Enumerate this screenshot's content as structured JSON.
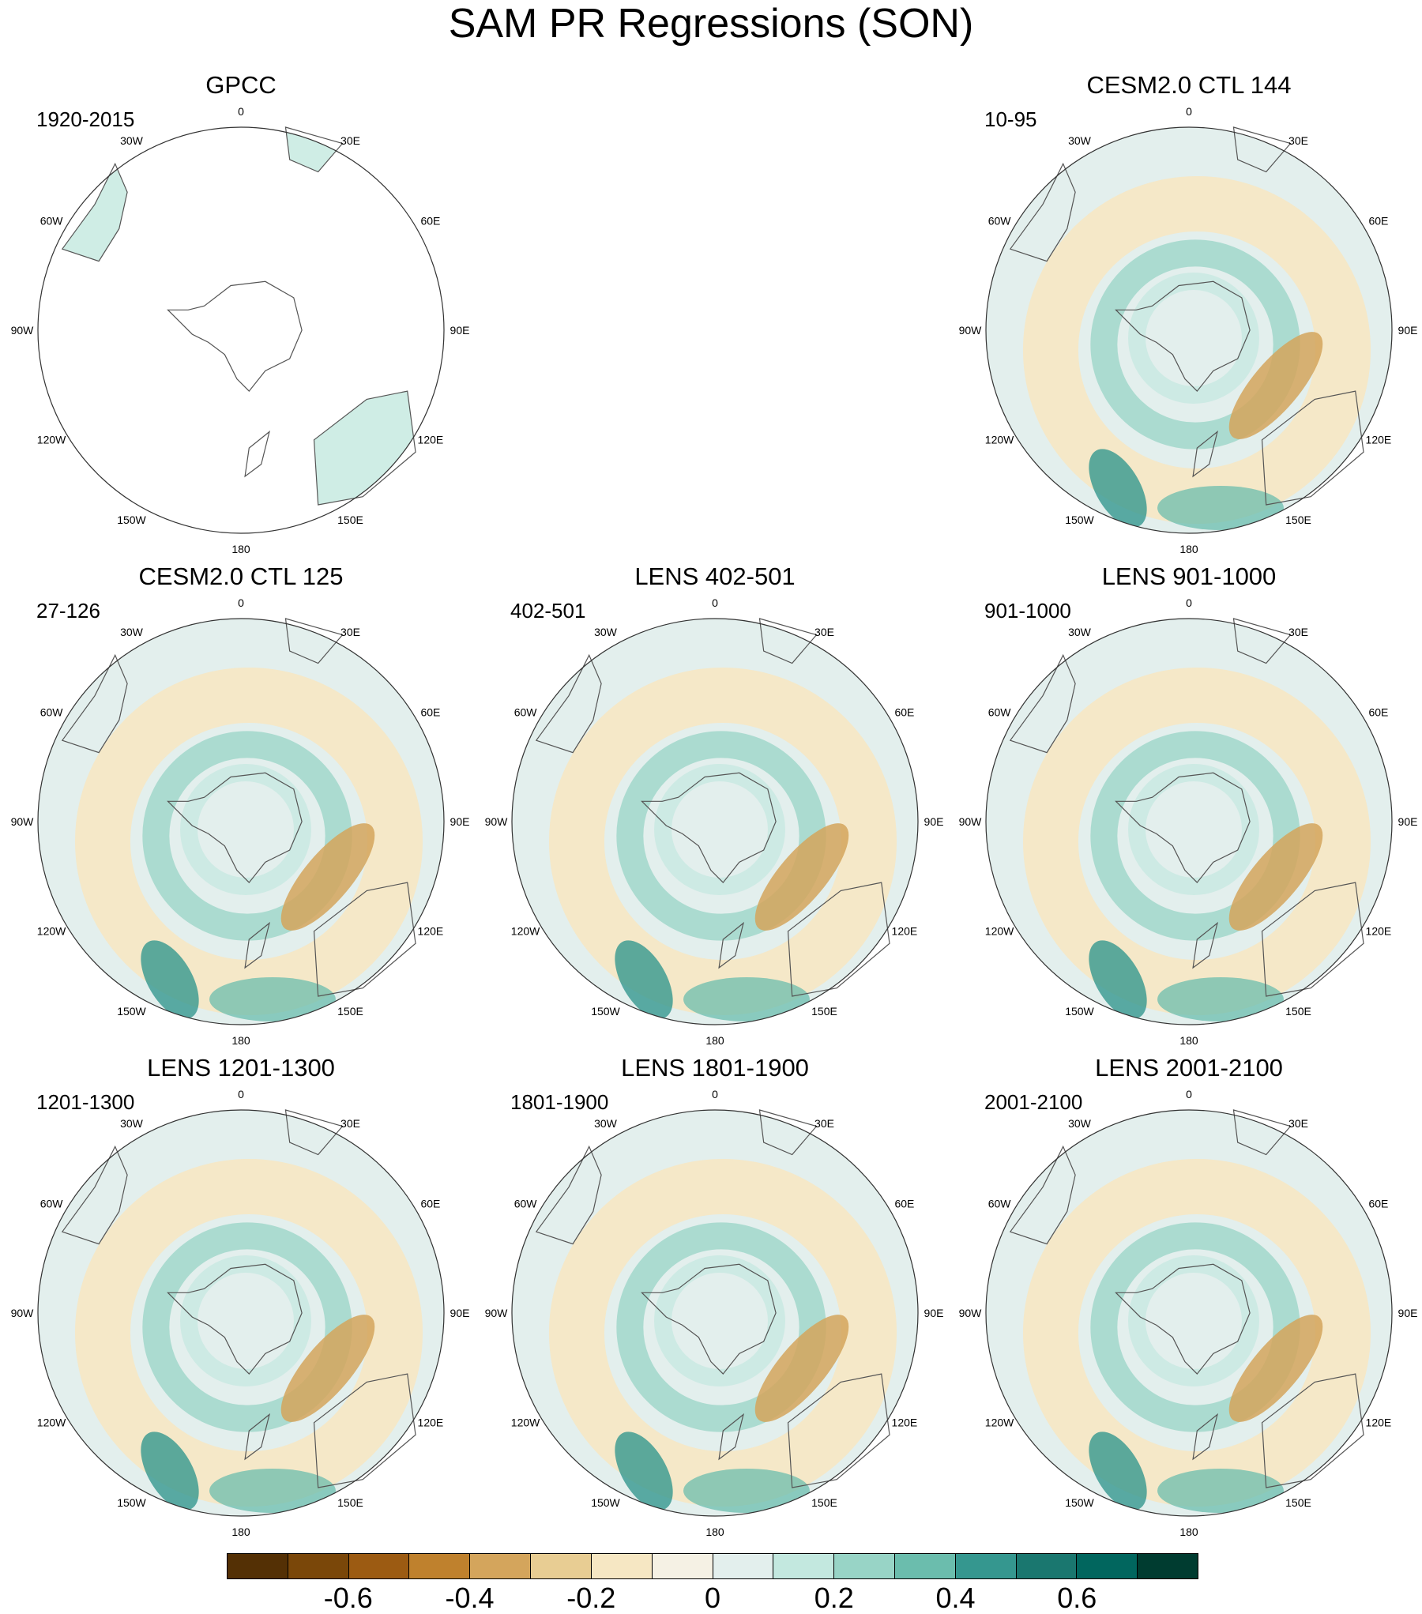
{
  "title": "SAM PR Regressions (SON)",
  "longitude_labels": [
    "0",
    "30E",
    "60E",
    "90E",
    "120E",
    "150E",
    "180",
    "150W",
    "120W",
    "90W",
    "60W",
    "30W"
  ],
  "panels": [
    {
      "title": "GPCC",
      "period": "1920-2015",
      "coverage": "land-only"
    },
    {
      "title": "CESM2.0 CTL 144",
      "period": "10-95",
      "coverage": "full"
    },
    {
      "title": "CESM2.0 CTL 125",
      "period": "27-126",
      "coverage": "full"
    },
    {
      "title": "LENS 402-501",
      "period": "402-501",
      "coverage": "full"
    },
    {
      "title": "LENS 901-1000",
      "period": "901-1000",
      "coverage": "full"
    },
    {
      "title": "LENS 1201-1300",
      "period": "1201-1300",
      "coverage": "full"
    },
    {
      "title": "LENS 1801-1900",
      "period": "1801-1900",
      "coverage": "full"
    },
    {
      "title": "LENS 2001-2100",
      "period": "2001-2100",
      "coverage": "full"
    }
  ],
  "colorbar": {
    "colors": [
      "#543005",
      "#7a4709",
      "#9c5b12",
      "#bf812d",
      "#d4a55c",
      "#e8cd93",
      "#f6e7c3",
      "#f5f1e4",
      "#e3efed",
      "#c3e8df",
      "#98d4c6",
      "#6bbdad",
      "#35978f",
      "#1a776f",
      "#01665e",
      "#003c30"
    ],
    "tick_labels": [
      "-0.6",
      "-0.4",
      "-0.2",
      "0",
      "0.2",
      "0.4",
      "0.6"
    ],
    "tick_values": [
      -0.6,
      -0.4,
      -0.2,
      0,
      0.2,
      0.4,
      0.6
    ],
    "min": -0.8,
    "max": 0.8
  }
}
